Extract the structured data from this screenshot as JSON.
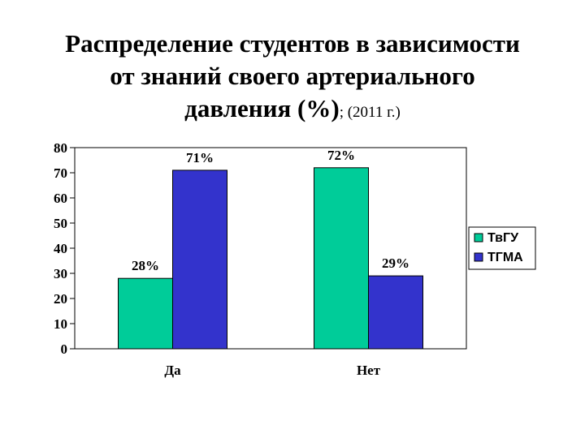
{
  "title_line1": "Распределение студентов в зависимости",
  "title_line2": "от знаний своего артериального",
  "title_line3": "давления (%)",
  "subtitle": "; (2011 г.)",
  "chart_data": {
    "type": "bar",
    "categories": [
      "Да",
      "Нет"
    ],
    "series": [
      {
        "name": "ТвГУ",
        "values": [
          28,
          72
        ],
        "labels": [
          "28%",
          "72%"
        ],
        "color": "#00cc99"
      },
      {
        "name": "ТГМА",
        "values": [
          71,
          29
        ],
        "labels": [
          "71%",
          "29%"
        ],
        "color": "#3333cc"
      }
    ],
    "ylim": [
      0,
      80
    ],
    "yticks": [
      0,
      10,
      20,
      30,
      40,
      50,
      60,
      70,
      80
    ],
    "grid": false,
    "legend": "right"
  }
}
